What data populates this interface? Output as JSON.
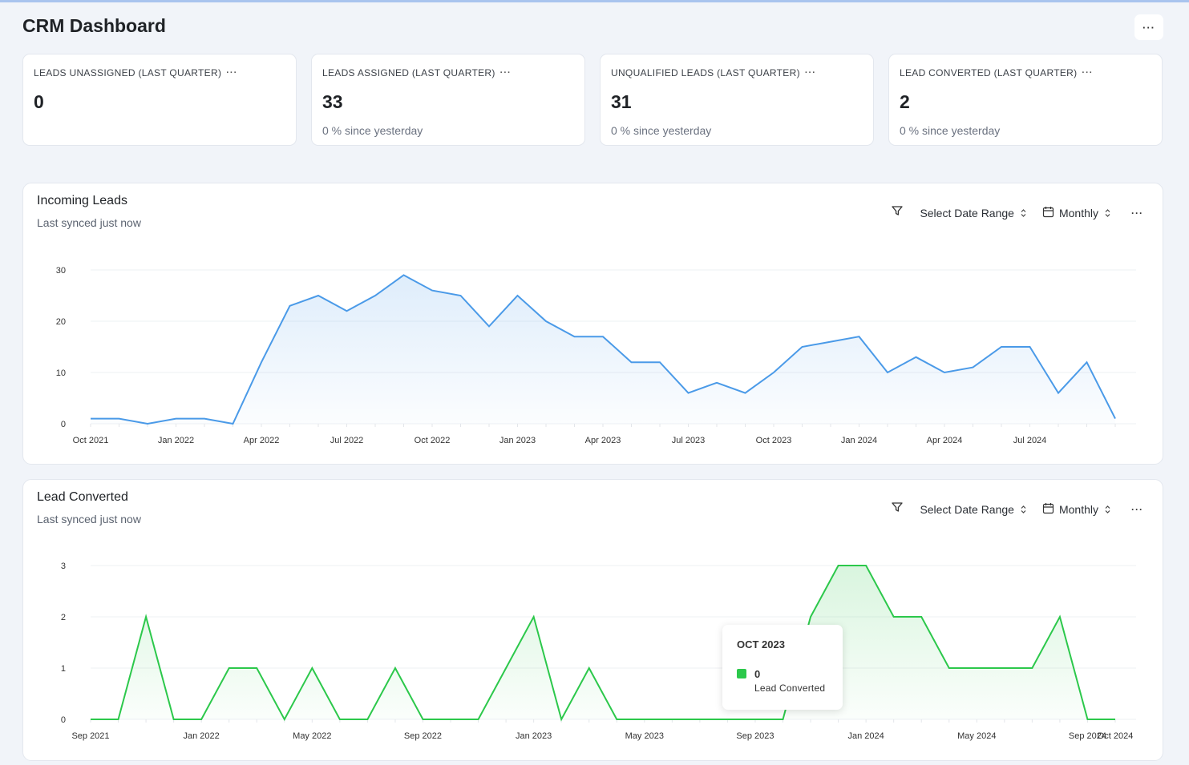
{
  "page": {
    "title": "CRM Dashboard",
    "menu_icon": "ellipsis-icon"
  },
  "kpis": [
    {
      "label": "LEADS UNASSIGNED (LAST QUARTER)",
      "value": "0",
      "sub": ""
    },
    {
      "label": "LEADS ASSIGNED (LAST QUARTER)",
      "value": "33",
      "sub": "0 % since yesterday"
    },
    {
      "label": "UNQUALIFIED LEADS (LAST QUARTER)",
      "value": "31",
      "sub": "0 % since yesterday"
    },
    {
      "label": "LEAD CONVERTED (LAST QUARTER)",
      "value": "2",
      "sub": "0 % since yesterday"
    }
  ],
  "incoming": {
    "title": "Incoming Leads",
    "sub": "Last synced just now",
    "date_range": "Select Date Range",
    "interval": "Monthly"
  },
  "converted": {
    "title": "Lead Converted",
    "sub": "Last synced just now",
    "date_range": "Select Date Range",
    "interval": "Monthly",
    "tooltip": {
      "title": "OCT 2023",
      "value": "0",
      "series": "Lead Converted"
    }
  },
  "colors": {
    "incoming_line": "#4a9ae8",
    "converted_line": "#2cc84b"
  },
  "chart_data": [
    {
      "type": "area",
      "title": "Incoming Leads",
      "x": [
        "Oct 2021",
        "Nov 2021",
        "Dec 2021",
        "Jan 2022",
        "Feb 2022",
        "Mar 2022",
        "Apr 2022",
        "May 2022",
        "Jun 2022",
        "Jul 2022",
        "Aug 2022",
        "Sep 2022",
        "Oct 2022",
        "Nov 2022",
        "Dec 2022",
        "Jan 2023",
        "Feb 2023",
        "Mar 2023",
        "Apr 2023",
        "May 2023",
        "Jun 2023",
        "Jul 2023",
        "Aug 2023",
        "Sep 2023",
        "Oct 2023",
        "Nov 2023",
        "Dec 2023",
        "Jan 2024",
        "Feb 2024",
        "Mar 2024",
        "Apr 2024",
        "May 2024",
        "Jun 2024",
        "Jul 2024",
        "Aug 2024",
        "Sep 2024",
        "Oct 2024"
      ],
      "tick_labels": [
        "Oct 2021",
        "Jan 2022",
        "Apr 2022",
        "Jul 2022",
        "Oct 2022",
        "Jan 2023",
        "Apr 2023",
        "Jul 2023",
        "Oct 2023",
        "Jan 2024",
        "Apr 2024",
        "Jul 2024"
      ],
      "series": [
        {
          "values": [
            1,
            1,
            0,
            1,
            1,
            0,
            12,
            23,
            25,
            22,
            25,
            29,
            26,
            25,
            19,
            25,
            20,
            17,
            17,
            12,
            12,
            6,
            8,
            6,
            10,
            15,
            16,
            17,
            10,
            13,
            10,
            11,
            15,
            15,
            6,
            12,
            1
          ]
        }
      ],
      "yticks": [
        0,
        10,
        20,
        30
      ],
      "ylim": [
        0,
        30
      ]
    },
    {
      "type": "area",
      "title": "Lead Converted",
      "x": [
        "Sep 2021",
        "Oct 2021",
        "Nov 2021",
        "Dec 2021",
        "Jan 2022",
        "Feb 2022",
        "Mar 2022",
        "Apr 2022",
        "May 2022",
        "Jun 2022",
        "Jul 2022",
        "Aug 2022",
        "Sep 2022",
        "Oct 2022",
        "Nov 2022",
        "Dec 2022",
        "Jan 2023",
        "Feb 2023",
        "Mar 2023",
        "Apr 2023",
        "May 2023",
        "Jun 2023",
        "Jul 2023",
        "Aug 2023",
        "Sep 2023",
        "Oct 2023",
        "Nov 2023",
        "Dec 2023",
        "Jan 2024",
        "Feb 2024",
        "Mar 2024",
        "Apr 2024",
        "May 2024",
        "Jun 2024",
        "Jul 2024",
        "Aug 2024",
        "Sep 2024",
        "Oct 2024"
      ],
      "tick_labels": [
        "Sep 2021",
        "Jan 2022",
        "May 2022",
        "Sep 2022",
        "Jan 2023",
        "May 2023",
        "Sep 2023",
        "Jan 2024",
        "May 2024",
        "Sep 2024",
        "Oct 2024"
      ],
      "series": [
        {
          "name": "Lead Converted",
          "values": [
            0,
            0,
            2,
            0,
            0,
            1,
            1,
            0,
            1,
            0,
            0,
            1,
            0,
            0,
            0,
            1,
            2,
            0,
            1,
            0,
            0,
            0,
            0,
            0,
            0,
            0,
            2,
            3,
            3,
            2,
            2,
            1,
            1,
            1,
            1,
            2,
            0,
            0
          ]
        }
      ],
      "yticks": [
        0,
        1,
        2,
        3
      ],
      "ylim": [
        0,
        3
      ]
    }
  ]
}
